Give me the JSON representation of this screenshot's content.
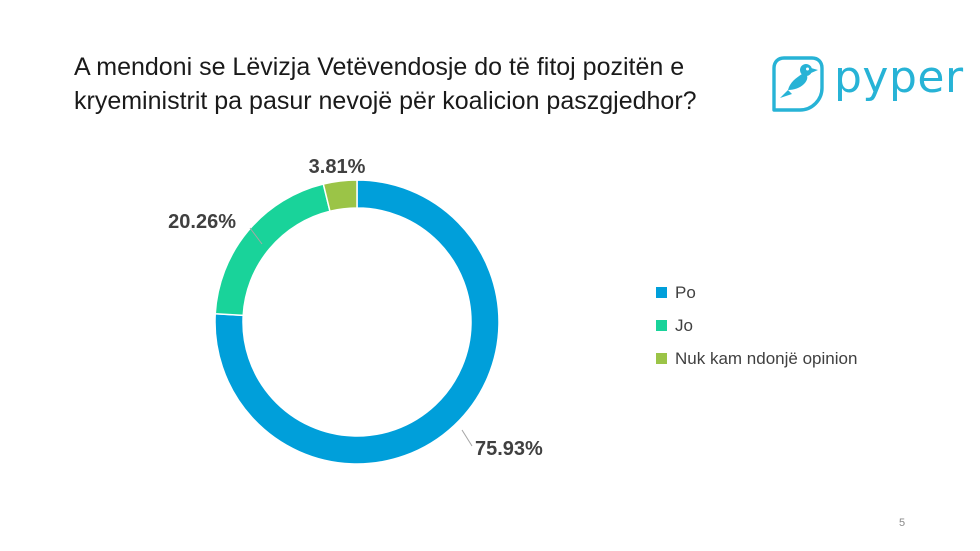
{
  "slide": {
    "title_lines": [
      "A mendoni se Lëvizja Vetëvendosje do të fitoj pozitën e",
      "kryeministrit pa pasur nevojë për koalicion paszgjedhor?"
    ],
    "page_number": "5"
  },
  "logo": {
    "text": "pyper",
    "icon": "bird-icon",
    "color": "#27b3d6"
  },
  "chart_data": {
    "type": "pie",
    "variant": "donut",
    "title": "A mendoni se Lëvizja Vetëvendosje do të fitoj pozitën e kryeministrit pa pasur nevojë për koalicion paszgjedhor?",
    "categories": [
      "Po",
      "Jo",
      "Nuk kam ndonjë opinion"
    ],
    "values": [
      75.93,
      20.26,
      3.81
    ],
    "labels": [
      "75.93%",
      "20.26%",
      "3.81%"
    ],
    "colors": [
      "#009fda",
      "#19d39a",
      "#9bc447"
    ],
    "legend_position": "right"
  }
}
